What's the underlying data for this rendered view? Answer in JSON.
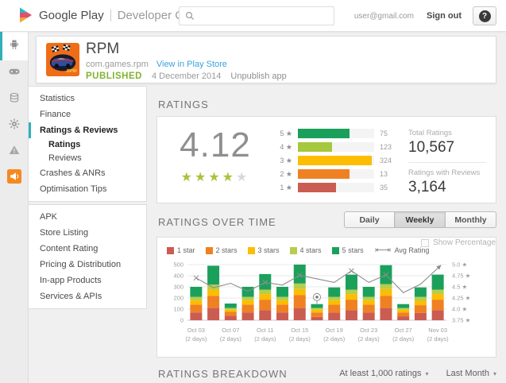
{
  "header": {
    "brand_primary": "Google Play",
    "brand_secondary": "Developer Console",
    "user_email": "user@gmail.com",
    "sign_out": "Sign out",
    "help": "?"
  },
  "app_bar": {
    "name": "RPM",
    "package": "com.games.rpm",
    "view_link": "View in Play Store",
    "status": "PUBLISHED",
    "date": "4 December 2014",
    "unpublish": "Unpublish app"
  },
  "rail": {
    "items": [
      {
        "icon": "android-icon",
        "active": true
      },
      {
        "icon": "games-icon"
      },
      {
        "icon": "earnings-icon"
      },
      {
        "icon": "settings-icon"
      },
      {
        "icon": "alerts-icon"
      },
      {
        "icon": "announcements-icon"
      }
    ]
  },
  "sidebar": {
    "groups": [
      {
        "items": [
          {
            "label": "Statistics"
          },
          {
            "label": "Finance"
          },
          {
            "label": "Ratings & Reviews",
            "active": true,
            "bold": true
          },
          {
            "label": "Ratings",
            "sub": true,
            "bold": true
          },
          {
            "label": "Reviews",
            "sub": true
          },
          {
            "label": "Crashes & ANRs"
          },
          {
            "label": "Optimisation Tips"
          }
        ]
      },
      {
        "items": [
          {
            "label": "APK"
          },
          {
            "label": "Store Listing"
          },
          {
            "label": "Content Rating"
          },
          {
            "label": "Pricing & Distribution"
          },
          {
            "label": "In-app Products"
          },
          {
            "label": "Services & APIs"
          }
        ]
      }
    ]
  },
  "ratings_section": {
    "title": "RATINGS",
    "average": "4.12",
    "star_char": "★",
    "stars_filled": 4,
    "stars_total": 5,
    "rows": [
      {
        "stars": "5",
        "value": "75",
        "percent": 68,
        "color": "#1ba05c"
      },
      {
        "stars": "4",
        "value": "123",
        "percent": 45,
        "color": "#a6c83e"
      },
      {
        "stars": "3",
        "value": "324",
        "percent": 97,
        "color": "#fcbd02"
      },
      {
        "stars": "2",
        "value": "13",
        "percent": 68,
        "color": "#ef8122"
      },
      {
        "stars": "1",
        "value": "35",
        "percent": 50,
        "color": "#cb5c52"
      }
    ],
    "total_label": "Total Ratings",
    "total_value": "10,567",
    "reviews_label": "Ratings with Reviews",
    "reviews_value": "3,164"
  },
  "over_time": {
    "title": "RATINGS OVER TIME",
    "buttons": [
      {
        "label": "Daily"
      },
      {
        "label": "Weekly",
        "active": true
      },
      {
        "label": "Monthly"
      }
    ],
    "legend": [
      {
        "label": "1 star",
        "color": "#cb5c52"
      },
      {
        "label": "2 stars",
        "color": "#ef8122"
      },
      {
        "label": "3 stars",
        "color": "#fcbd02"
      },
      {
        "label": "4 stars",
        "color": "#b6cd4d"
      },
      {
        "label": "5 stars",
        "color": "#1ba05c"
      },
      {
        "label": "Avg Rating",
        "type": "line"
      }
    ],
    "show_percentage": "Show Percentage"
  },
  "chart_data": {
    "type": "bar",
    "stacked": true,
    "title": "Ratings over time (weekly)",
    "categories": [
      "Oct 03",
      "",
      "Oct 07",
      "",
      "Oct 11",
      "",
      "Oct 15",
      "",
      "Oct 19",
      "",
      "Oct 23",
      "",
      "Oct 27",
      "",
      "Nov 03"
    ],
    "category_sub": "(2 days)",
    "series": [
      {
        "name": "1 star",
        "color": "#cb5c52",
        "values": [
          70,
          110,
          40,
          70,
          90,
          70,
          110,
          30,
          70,
          90,
          70,
          110,
          35,
          65,
          90
        ]
      },
      {
        "name": "2 stars",
        "color": "#ef8122",
        "values": [
          70,
          110,
          35,
          70,
          95,
          70,
          115,
          40,
          70,
          95,
          70,
          110,
          35,
          70,
          95
        ]
      },
      {
        "name": "3 stars",
        "color": "#fcbd02",
        "values": [
          40,
          55,
          20,
          40,
          50,
          40,
          55,
          25,
          40,
          50,
          40,
          60,
          25,
          40,
          50
        ]
      },
      {
        "name": "4 stars",
        "color": "#b6cd4d",
        "values": [
          30,
          45,
          15,
          30,
          40,
          30,
          50,
          15,
          30,
          40,
          30,
          45,
          15,
          35,
          40
        ]
      },
      {
        "name": "5 stars",
        "color": "#1ba05c",
        "values": [
          90,
          170,
          40,
          90,
          140,
          90,
          170,
          35,
          85,
          135,
          90,
          170,
          35,
          85,
          135
        ]
      }
    ],
    "line": {
      "name": "Avg Rating",
      "color": "#8c8c8c",
      "values": [
        4.7,
        4.48,
        4.58,
        4.4,
        4.6,
        4.54,
        4.76,
        4.68,
        4.6,
        4.86,
        4.6,
        4.77,
        4.37,
        4.56,
        4.92
      ],
      "x_marker_indices": [
        0,
        4,
        6,
        9,
        11
      ],
      "arrow_end": true
    },
    "event_marker": {
      "index": 7,
      "value": 4.27
    },
    "y_left": {
      "ticks": [
        "0",
        "100",
        "200",
        "300",
        "400",
        "500"
      ],
      "min": 0,
      "max": 500
    },
    "y_right": {
      "ticks": [
        "3.75",
        "4.0",
        "4.25",
        "4.5",
        "4.75",
        "5.0"
      ],
      "min": 3.75,
      "max": 5.0,
      "suffix": "★"
    },
    "grid": true,
    "legend_position": "top"
  },
  "breakdown": {
    "title": "RATINGS BREAKDOWN",
    "filters": [
      {
        "label": "At least 1,000 ratings"
      },
      {
        "label": "Last Month"
      }
    ]
  }
}
